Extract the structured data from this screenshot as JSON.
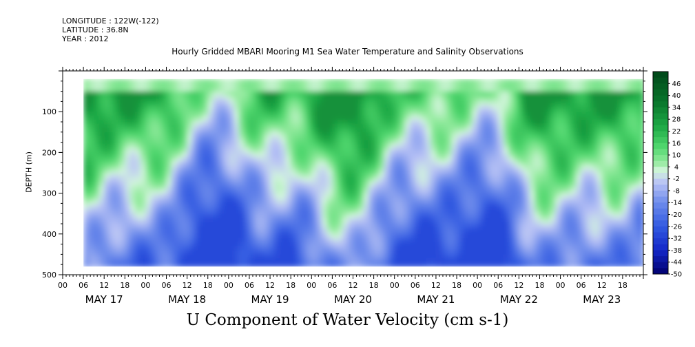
{
  "header": {
    "longitude": "LONGITUDE : 122W(-122)",
    "latitude": "LATITUDE : 36.8N",
    "year": "YEAR : 2012"
  },
  "chart_data": {
    "type": "heatmap",
    "title": "Hourly Gridded MBARI Mooring M1 Sea Water Temperature and Salinity Observations",
    "xlabel": "U Component of Water Velocity (cm s-1)",
    "ylabel": "DEPTH (m)",
    "y_ticks": [
      "100",
      "200",
      "300",
      "400",
      "500"
    ],
    "y_tick_values": [
      100,
      200,
      300,
      400,
      500
    ],
    "ylim": [
      500,
      0
    ],
    "y_inverted": true,
    "x_hour_ticks": [
      "00",
      "06",
      "12",
      "18",
      "00",
      "06",
      "12",
      "18",
      "00",
      "06",
      "12",
      "18",
      "00",
      "06",
      "12",
      "18",
      "00",
      "06",
      "12",
      "18",
      "00",
      "06",
      "12",
      "18",
      "00",
      "06",
      "12",
      "18"
    ],
    "x_day_labels": [
      "MAY 17",
      "MAY 18",
      "MAY 19",
      "MAY 20",
      "MAY 21",
      "MAY 22",
      "MAY 23"
    ],
    "x_range_hours": [
      0,
      168
    ],
    "data_start_hour": 6,
    "depth_range": [
      20,
      480
    ],
    "colorbar": {
      "labels": [
        "46",
        "40",
        "34",
        "28",
        "22",
        "16",
        "10",
        "4",
        "-2",
        "-8",
        "-14",
        "-20",
        "-26",
        "-32",
        "-38",
        "-44",
        "-50"
      ],
      "range": [
        -50,
        52
      ]
    },
    "grid": false,
    "legend": "colorbar-right"
  }
}
